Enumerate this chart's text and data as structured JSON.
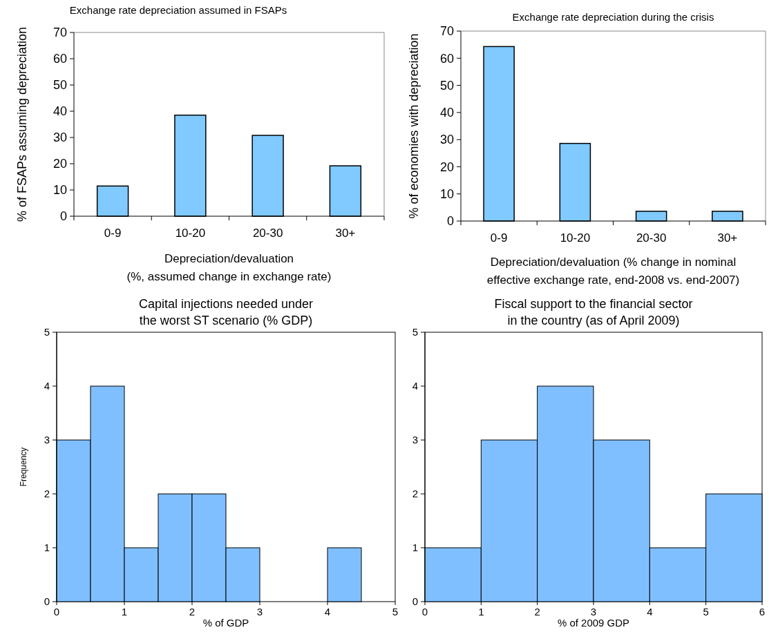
{
  "chart_data": [
    {
      "type": "bar",
      "title": "Exchange rate depreciation assumed in FSAPs",
      "xlabel": "Depreciation/devaluation\n(%, assumed change in exchange rate)",
      "ylabel": "% of FSAPs assuming depreciation",
      "categories": [
        "0-9",
        "10-20",
        "20-30",
        "30+"
      ],
      "values": [
        11.5,
        38.5,
        30.8,
        19.2
      ],
      "color": "#80caff",
      "ylim": [
        0,
        70
      ],
      "yticks": [
        0,
        10,
        20,
        30,
        40,
        50,
        60,
        70
      ],
      "grid": false,
      "legend": false
    },
    {
      "type": "bar",
      "title": "Exchange rate depreciation during the crisis",
      "xlabel": "Depreciation/devaluation (% change in nominal\neffective exchange rate, end-2008 vs. end-2007)",
      "ylabel": "% of economies with  depreciation",
      "categories": [
        "0-9",
        "10-20",
        "20-30",
        "30+"
      ],
      "values": [
        64.3,
        28.6,
        3.6,
        3.6
      ],
      "color": "#80caff",
      "ylim": [
        0,
        70
      ],
      "yticks": [
        0,
        10,
        20,
        30,
        40,
        50,
        60,
        70
      ],
      "grid": false,
      "legend": false
    },
    {
      "type": "histogram",
      "title": "Capital injections needed under\nthe worst ST scenario (% GDP)",
      "xlabel": "% of GDP",
      "ylabel": "Frequency",
      "bins": [
        0,
        0.5,
        1,
        1.5,
        2,
        2.5,
        3,
        3.5,
        4,
        4.5
      ],
      "values": [
        3,
        4,
        1,
        2,
        2,
        1,
        0,
        0,
        1
      ],
      "color": "#80bfff",
      "xlim": [
        0,
        5
      ],
      "xticks": [
        0,
        1,
        2,
        3,
        4,
        5
      ],
      "ylim": [
        0,
        5
      ],
      "yticks": [
        0,
        1,
        2,
        3,
        4,
        5
      ],
      "grid": false,
      "legend": false
    },
    {
      "type": "histogram",
      "title": "Fiscal support to the financial sector\nin the country (as of April 2009)",
      "xlabel": "% of 2009 GDP",
      "bins": [
        0,
        1,
        2,
        3,
        4,
        5,
        6
      ],
      "values": [
        1,
        3,
        4,
        3,
        1,
        2
      ],
      "color": "#80bfff",
      "xlim": [
        0,
        6
      ],
      "xticks": [
        0,
        1,
        2,
        3,
        4,
        5,
        6
      ],
      "ylim": [
        0,
        5
      ],
      "yticks": [
        0,
        1,
        2,
        3,
        4,
        5
      ],
      "grid": false,
      "legend": false
    }
  ]
}
